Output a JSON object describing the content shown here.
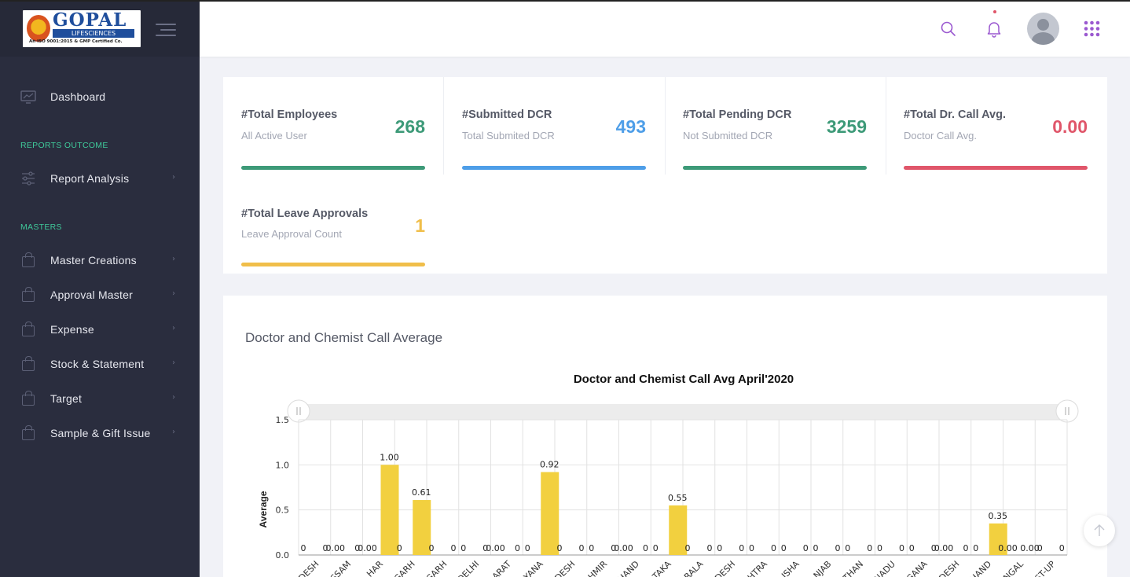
{
  "brand": {
    "name": "GOPAL",
    "subtitle": "LIFESCIENCES",
    "tagline": "An ISO 9001:2015 & GMP Certified Co."
  },
  "sidebar": {
    "dashboard": "Dashboard",
    "section_reports": "REPORTS OUTCOME",
    "report_analysis": "Report Analysis",
    "section_masters": "MASTERS",
    "masters": [
      {
        "label": "Master Creations",
        "icon": "bag-icon"
      },
      {
        "label": "Approval Master",
        "icon": "bag-icon"
      },
      {
        "label": "Expense",
        "icon": "bag-icon"
      },
      {
        "label": "Stock & Statement",
        "icon": "bag-icon"
      },
      {
        "label": "Target",
        "icon": "bag-icon"
      },
      {
        "label": "Sample & Gift Issue",
        "icon": "bag-icon"
      }
    ],
    "chevron": "›"
  },
  "header": {
    "icons": [
      "search-icon",
      "bell-icon",
      "avatar",
      "apps-grid-icon"
    ],
    "accent": "#9b59d0"
  },
  "stats": [
    {
      "title": "#Total Employees",
      "sub": "All Active User",
      "value": "268",
      "color": "#3d9a78"
    },
    {
      "title": "#Submitted DCR",
      "sub": "Total Submited DCR",
      "value": "493",
      "color": "#4e9ee8"
    },
    {
      "title": "#Total Pending DCR",
      "sub": "Not Submitted DCR",
      "value": "3259",
      "color": "#3d9a78"
    },
    {
      "title": "#Total Dr. Call Avg.",
      "sub": "Doctor Call Avg.",
      "value": "0.00",
      "color": "#e0566a"
    },
    {
      "title": "#Total Leave Approvals",
      "sub": "Leave Approval Count",
      "value": "1",
      "color": "#f0be4a"
    }
  ],
  "chart_section": {
    "heading": "Doctor and Chemist Call Average"
  },
  "chart_data": {
    "type": "bar",
    "title": "Doctor and Chemist Call Avg April'2020",
    "xlabel": "",
    "ylabel": "Average",
    "ylim": [
      0,
      1.5
    ],
    "yticks": [
      "0.0",
      "0.5",
      "1.0",
      "1.5"
    ],
    "grid": true,
    "bar_color": "#f2d03f",
    "categories": [
      "DESH",
      "SSAM",
      "HAR",
      "GARH",
      "GARH",
      "DELHI",
      "ARAT",
      "YANA",
      "DESH",
      "HMIR",
      "HAND",
      "TAKA",
      "RALA",
      "DESH",
      "HTRA",
      "ISHA",
      "NJAB",
      "THAN",
      "NADU",
      "GANA",
      "DESH",
      "HAND",
      "NGAL",
      "ST-UP"
    ],
    "series": [
      {
        "values": [
          0,
          0,
          1.0,
          0.61,
          0,
          0,
          0,
          0.92,
          0,
          0,
          0,
          0.55,
          0,
          0,
          0,
          0,
          0,
          0,
          0,
          0,
          0,
          0.35,
          0,
          0
        ],
        "labels": [
          "0",
          "0",
          "1.00",
          "0.61",
          "0",
          "0",
          "0",
          "0.92",
          "0",
          "0",
          "0",
          "0.55",
          "0",
          "0",
          "0",
          "0",
          "0",
          "0",
          "0",
          "0",
          "0",
          "0.35",
          "0.00",
          "0"
        ]
      },
      {
        "values": [
          0,
          0,
          0,
          0,
          0,
          0,
          0,
          0,
          0,
          0,
          0,
          0,
          0,
          0,
          0,
          0,
          0,
          0,
          0,
          0,
          0,
          0,
          0,
          0
        ],
        "labels": [
          "0",
          "0.00",
          "0.00",
          "0",
          "0",
          "0",
          "0.00",
          "0",
          "0",
          "0",
          "0.00",
          "0",
          "0",
          "0",
          "0",
          "0",
          "0",
          "0",
          "0",
          "0",
          "0.00",
          "0",
          "0.00",
          "0"
        ]
      }
    ],
    "data_labels_top": [
      "",
      "0.00",
      "",
      "",
      "",
      "",
      "0.00",
      "",
      "",
      "",
      "0.00",
      "",
      "",
      "",
      "",
      "",
      "",
      "",
      "",
      "",
      "0.00",
      "",
      "0.00",
      ""
    ]
  }
}
